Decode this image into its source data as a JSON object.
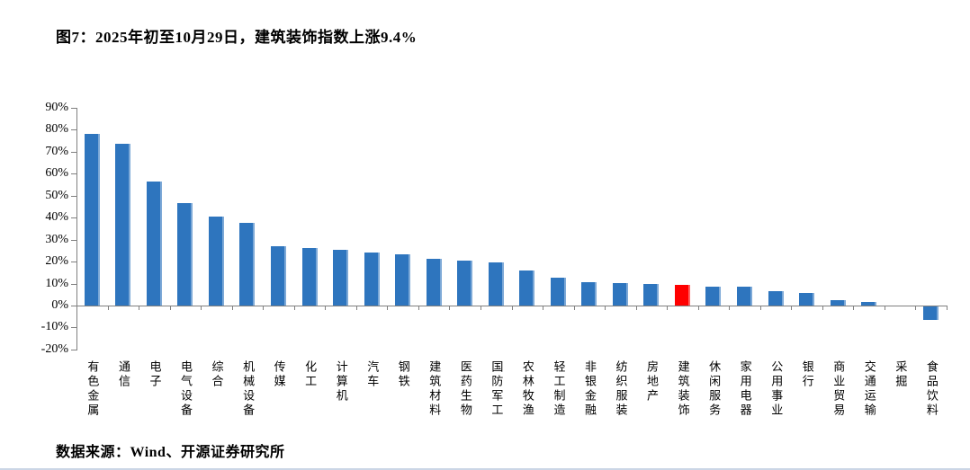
{
  "figure": {
    "title": "图7：2025年初至10月29日，建筑装饰指数上涨9.4%",
    "source": "数据来源：Wind、开源证券研究所"
  },
  "colors": {
    "bar_default": "#2E75BE",
    "bar_highlight": "#FF0000",
    "axis": "#808080",
    "text": "#000000",
    "bottom_rule": "#B9C8DE"
  },
  "chart_data": {
    "type": "bar",
    "title": "图7：2025年初至10月29日，建筑装饰指数上涨9.4%",
    "categories": [
      "有色金属",
      "通信",
      "电子",
      "电气设备",
      "综合",
      "机械设备",
      "传媒",
      "化工",
      "计算机",
      "汽车",
      "钢铁",
      "建筑材料",
      "医药生物",
      "国防军工",
      "农林牧渔",
      "轻工制造",
      "非银金融",
      "纺织服装",
      "房地产",
      "建筑装饰",
      "休闲服务",
      "家用电器",
      "公用事业",
      "银行",
      "商业贸易",
      "交通运输",
      "采掘",
      "食品饮料"
    ],
    "values": [
      78.0,
      73.8,
      56.5,
      46.7,
      40.3,
      37.5,
      26.8,
      26.3,
      25.2,
      24.3,
      23.5,
      21.4,
      20.3,
      19.6,
      15.8,
      12.7,
      10.8,
      10.2,
      9.9,
      9.4,
      8.6,
      8.4,
      6.4,
      5.8,
      2.6,
      1.7,
      0.0,
      -6.0
    ],
    "highlight_index": 19,
    "highlight_category": "建筑装饰",
    "highlight_value_label": "9.4%",
    "xlabel": "",
    "ylabel": "",
    "ylim": [
      -20,
      90
    ],
    "ytick_step": 10,
    "ytick_labels": [
      "90%",
      "80%",
      "70%",
      "60%",
      "50%",
      "40%",
      "30%",
      "20%",
      "10%",
      "0%",
      "-10%",
      "-20%"
    ],
    "grid": false,
    "legend_position": "none"
  }
}
